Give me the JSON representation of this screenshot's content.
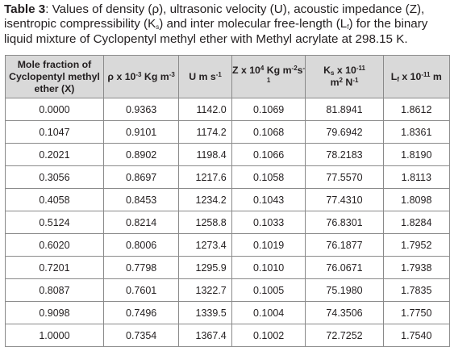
{
  "caption": {
    "label": "Table 3",
    "text_1": ": Values of density (ρ), ultrasonic velocity (U), acoustic impedance (Z), isentropic compressibility (K",
    "sub_1": "s",
    "text_2": ") and inter molecular free-length (L",
    "sub_2": "f",
    "text_3": ") for the binary liquid mixture of Cyclopentyl methyl ether with Methyl acrylate at 298.15 K."
  },
  "headers": {
    "col1": "Mole fraction of Cyclopentyl methyl ether (X)",
    "col2_pre": "ρ x 10",
    "col2_sup1": "-3",
    "col2_mid": " Kg m",
    "col2_sup2": "-3",
    "col3_pre": "U m s",
    "col3_sup": "-1",
    "col4_pre": "Z x 10",
    "col4_sup1": "4",
    "col4_mid": " Kg m",
    "col4_sup2": "-2",
    "col4_post": "s",
    "col4_sup3": "-1",
    "col5_pre": "K",
    "col5_sub": "s",
    "col5_mid": " x 10",
    "col5_sup1": "-11",
    "col5_line2": "m",
    "col5_sup2": "2",
    "col5_post": " N",
    "col5_sup3": "-1",
    "col6_pre": "L",
    "col6_sub": "f",
    "col6_mid": " x 10",
    "col6_sup": "-11",
    "col6_post": " m"
  },
  "rows": [
    [
      "0.0000",
      "0.9363",
      "1142.0",
      "0.1069",
      "81.8941",
      "1.8612"
    ],
    [
      "0.1047",
      "0.9101",
      "1174.2",
      "0.1068",
      "79.6942",
      "1.8361"
    ],
    [
      "0.2021",
      "0.8902",
      "1198.4",
      "0.1066",
      "78.2183",
      "1.8190"
    ],
    [
      "0.3056",
      "0.8697",
      "1217.6",
      "0.1058",
      "77.5570",
      "1.8113"
    ],
    [
      "0.4058",
      "0.8453",
      "1234.2",
      "0.1043",
      "77.4310",
      "1.8098"
    ],
    [
      "0.5124",
      "0.8214",
      "1258.8",
      "0.1033",
      "76.8301",
      "1.8284"
    ],
    [
      "0.6020",
      "0.8006",
      "1273.4",
      "0.1019",
      "76.1877",
      "1.7952"
    ],
    [
      "0.7201",
      "0.7798",
      "1295.9",
      "0.1010",
      "76.0671",
      "1.7938"
    ],
    [
      "0.8087",
      "0.7601",
      "1322.7",
      "0.1005",
      "75.1980",
      "1.7835"
    ],
    [
      "0.9098",
      "0.7496",
      "1339.5",
      "0.1004",
      "74.3506",
      "1.7750"
    ],
    [
      "1.0000",
      "0.7354",
      "1367.4",
      "0.1002",
      "72.7252",
      "1.7540"
    ]
  ]
}
